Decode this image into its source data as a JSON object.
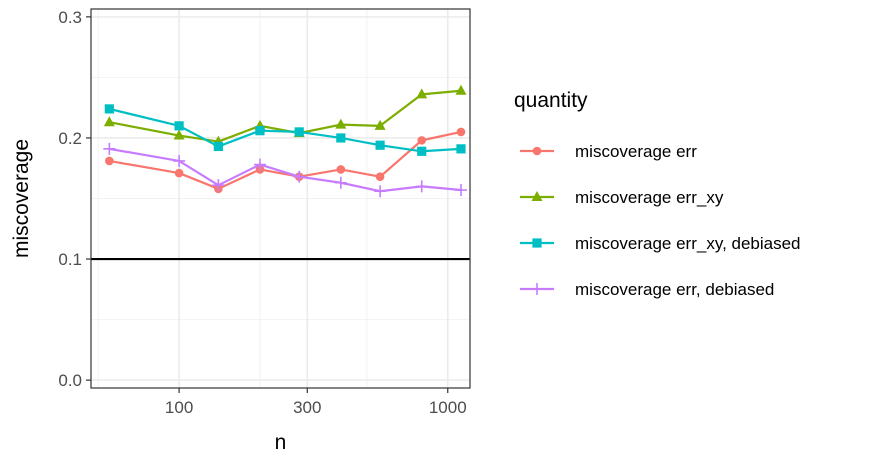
{
  "chart_data": {
    "type": "line",
    "xlabel": "n",
    "ylabel": "miscoverage",
    "x_scale": "log10",
    "xlim": [
      47,
      1210
    ],
    "ylim": [
      -0.0065,
      0.3065
    ],
    "x_ticks": [
      100,
      300,
      1000
    ],
    "x_tick_labels": [
      "100",
      "300",
      "1000"
    ],
    "x_minor_ticks": [
      50,
      200,
      500
    ],
    "y_ticks": [
      0.0,
      0.1,
      0.2,
      0.3
    ],
    "y_tick_labels": [
      "0.0",
      "0.1",
      "0.2",
      "0.3"
    ],
    "y_minor_ticks": [
      0.05,
      0.15,
      0.25
    ],
    "grid": true,
    "reference_line": {
      "y": 0.1
    },
    "x": [
      55,
      100,
      140,
      200,
      280,
      400,
      560,
      800,
      1120
    ],
    "legend_title": "quantity",
    "legend_position": "right",
    "series": [
      {
        "name": "miscoverage err",
        "color": "#F8766D",
        "marker": "circle",
        "values": [
          0.181,
          0.171,
          0.158,
          0.174,
          0.168,
          0.174,
          0.168,
          0.198,
          0.205
        ]
      },
      {
        "name": "miscoverage err_xy",
        "color": "#7CAE00",
        "marker": "triangle",
        "values": [
          0.213,
          0.202,
          0.197,
          0.21,
          0.204,
          0.211,
          0.21,
          0.236,
          0.239
        ]
      },
      {
        "name": "miscoverage err_xy, debiased",
        "color": "#00BFC4",
        "marker": "square",
        "values": [
          0.224,
          0.21,
          0.193,
          0.206,
          0.205,
          0.2,
          0.194,
          0.189,
          0.191
        ]
      },
      {
        "name": "miscoverage err, debiased",
        "color": "#C77CFF",
        "marker": "plus",
        "values": [
          0.191,
          0.181,
          0.161,
          0.178,
          0.168,
          0.163,
          0.156,
          0.16,
          0.157
        ]
      }
    ]
  }
}
